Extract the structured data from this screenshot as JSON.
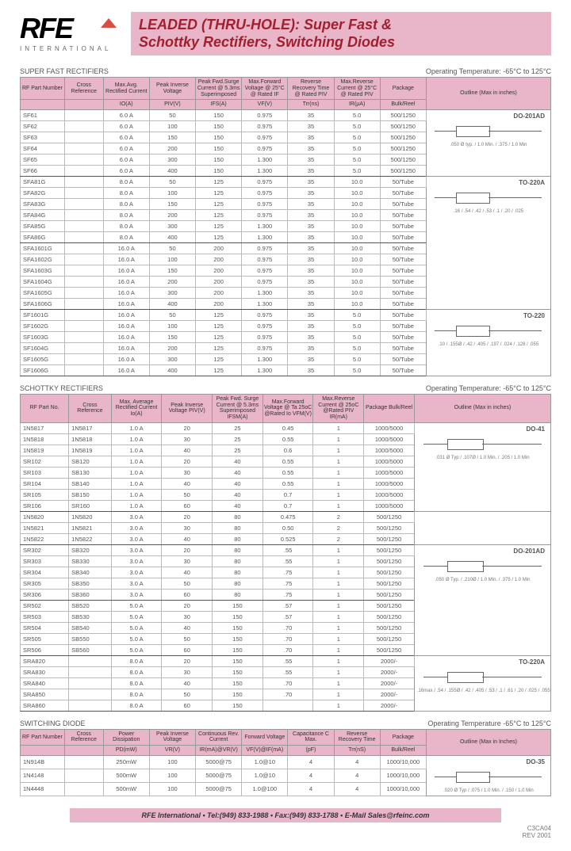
{
  "header": {
    "logo_text": "RFE",
    "logo_sub": "INTERNATIONAL",
    "title_line1": "LEADED (THRU-HOLE): Super Fast &",
    "title_line2": "Schottky Rectifiers, Switching Diodes"
  },
  "sections": {
    "sf": {
      "title": "SUPER FAST RECTIFIERS",
      "temp": "Operating Temperature: -65°C to 125°C",
      "headers": [
        "RF Part Number",
        "Cross Reference",
        "Max.Avg. Rectified Current",
        "Peak Inverse Voltage",
        "Peak Fwd.Surge Current @ 5.3ms Superimposed",
        "Max.Forward Voltage @ 25°C @ Rated IF",
        "Reverse Recovery Time @ Rated PIV",
        "Max.Reverse Current @ 25°C @ Rated PIV",
        "Package",
        "Outline (Max in inches)"
      ],
      "units": [
        "",
        "",
        "IO(A)",
        "PIV(V)",
        "IFS(A)",
        "VF(V)",
        "Trr(ns)",
        "IR(μA)",
        "Bulk/Reel",
        ""
      ],
      "groups": [
        {
          "outline": "DO-201AD",
          "dims": ".050 Ø typ. / 1.0 Min. / .375 / 1.0 Min",
          "rows": [
            [
              "SF61",
              "",
              "6.0 A",
              "50",
              "150",
              "0.975",
              "35",
              "5.0",
              "500/1250"
            ],
            [
              "SF62",
              "",
              "6.0 A",
              "100",
              "150",
              "0.975",
              "35",
              "5.0",
              "500/1250"
            ],
            [
              "SF63",
              "",
              "6.0 A",
              "150",
              "150",
              "0.975",
              "35",
              "5.0",
              "500/1250"
            ],
            [
              "SF64",
              "",
              "6.0 A",
              "200",
              "150",
              "0.975",
              "35",
              "5.0",
              "500/1250"
            ],
            [
              "SF65",
              "",
              "6.0 A",
              "300",
              "150",
              "1.300",
              "35",
              "5.0",
              "500/1250"
            ],
            [
              "SF66",
              "",
              "6.0 A",
              "400",
              "150",
              "1.300",
              "35",
              "5.0",
              "500/1250"
            ]
          ]
        },
        {
          "outline": "TO-220A",
          "dims": ".16 / .54 / .42 / .53 / .1 / .20 / .025",
          "rows": [
            [
              "SFA81G",
              "",
              "8.0 A",
              "50",
              "125",
              "0.975",
              "35",
              "10.0",
              "50/Tube"
            ],
            [
              "SFA82G",
              "",
              "8.0 A",
              "100",
              "125",
              "0.975",
              "35",
              "10.0",
              "50/Tube"
            ],
            [
              "SFA83G",
              "",
              "8.0 A",
              "150",
              "125",
              "0.975",
              "35",
              "10.0",
              "50/Tube"
            ],
            [
              "SFA84G",
              "",
              "8.0 A",
              "200",
              "125",
              "0.975",
              "35",
              "10.0",
              "50/Tube"
            ],
            [
              "SFA85G",
              "",
              "8.0 A",
              "300",
              "125",
              "1.300",
              "35",
              "10.0",
              "50/Tube"
            ],
            [
              "SFA86G",
              "",
              "8.0 A",
              "400",
              "125",
              "1.300",
              "35",
              "10.0",
              "50/Tube"
            ]
          ]
        },
        {
          "outline": "",
          "dims": "",
          "rows": [
            [
              "SFA1601G",
              "",
              "16.0 A",
              "50",
              "200",
              "0.975",
              "35",
              "10.0",
              "50/Tube"
            ],
            [
              "SFA1602G",
              "",
              "16.0 A",
              "100",
              "200",
              "0.975",
              "35",
              "10.0",
              "50/Tube"
            ],
            [
              "SFA1603G",
              "",
              "16.0 A",
              "150",
              "200",
              "0.975",
              "35",
              "10.0",
              "50/Tube"
            ],
            [
              "SFA1604G",
              "",
              "16.0 A",
              "200",
              "200",
              "0.975",
              "35",
              "10.0",
              "50/Tube"
            ],
            [
              "SFA1605G",
              "",
              "16.0 A",
              "300",
              "200",
              "1.300",
              "35",
              "10.0",
              "50/Tube"
            ],
            [
              "SFA1606G",
              "",
              "16.0 A",
              "400",
              "200",
              "1.300",
              "35",
              "10.0",
              "50/Tube"
            ]
          ]
        },
        {
          "outline": "TO-220",
          "dims": ".10 / .155Ø / .42 / .405 / .197 / .024 / .128 / .055",
          "rows": [
            [
              "SF1601G",
              "",
              "16.0 A",
              "50",
              "125",
              "0.975",
              "35",
              "5.0",
              "50/Tube"
            ],
            [
              "SF1602G",
              "",
              "16.0 A",
              "100",
              "125",
              "0.975",
              "35",
              "5.0",
              "50/Tube"
            ],
            [
              "SF1603G",
              "",
              "16.0 A",
              "150",
              "125",
              "0.975",
              "35",
              "5.0",
              "50/Tube"
            ],
            [
              "SF1604G",
              "",
              "16.0 A",
              "200",
              "125",
              "0.975",
              "35",
              "5.0",
              "50/Tube"
            ],
            [
              "SF1605G",
              "",
              "16.0 A",
              "300",
              "125",
              "1.300",
              "35",
              "5.0",
              "50/Tube"
            ],
            [
              "SF1606G",
              "",
              "16.0 A",
              "400",
              "125",
              "1.300",
              "35",
              "5.0",
              "50/Tube"
            ]
          ]
        }
      ]
    },
    "sch": {
      "title": "SCHOTTKY RECTIFIERS",
      "temp": "Operating Temperature: -65°C to 125°C",
      "headers": [
        "RF Part No.",
        "Cross Reference",
        "Max. Average Rectified Current Io(A)",
        "Peak Inverse Voltage PIV(V)",
        "Peak Fwd. Surge Current @ 5.3ms Superimposed IFSM(A)",
        "Max.Forward Voltage @ Ta 25oC @Rated Io VFM(V)",
        "Max.Reverse Current @ 25oC @Rated PIV IR(mA)",
        "Package Bulk/Reel",
        "Outline (Max in inches)"
      ],
      "groups": [
        {
          "outline": "DO-41",
          "dims": ".031 Ø Typ / .107Ø / 1.0 Min. / .205 / 1.0 Min",
          "rows": [
            [
              "1N5817",
              "1N5817",
              "1.0 A",
              "20",
              "25",
              "0.45",
              "1",
              "1000/5000"
            ],
            [
              "1N5818",
              "1N5818",
              "1.0 A",
              "30",
              "25",
              "0.55",
              "1",
              "1000/5000"
            ],
            [
              "1N5819",
              "1N5819",
              "1.0 A",
              "40",
              "25",
              "0.6",
              "1",
              "1000/5000"
            ],
            [
              "SR102",
              "SB120",
              "1.0 A",
              "20",
              "40",
              "0.55",
              "1",
              "1000/5000"
            ],
            [
              "SR103",
              "SB130",
              "1.0 A",
              "30",
              "40",
              "0.55",
              "1",
              "1000/5000"
            ],
            [
              "SR104",
              "SB140",
              "1.0 A",
              "40",
              "40",
              "0.55",
              "1",
              "1000/5000"
            ],
            [
              "SR105",
              "SB150",
              "1.0 A",
              "50",
              "40",
              "0.7",
              "1",
              "1000/5000"
            ],
            [
              "SR106",
              "SR160",
              "1.0 A",
              "60",
              "40",
              "0.7",
              "1",
              "1000/5000"
            ]
          ]
        },
        {
          "outline": "",
          "dims": "",
          "rows": [
            [
              "1N5820",
              "1N5820",
              "3.0 A",
              "20",
              "80",
              "0.475",
              "2",
              "500/1250"
            ],
            [
              "1N5821",
              "1N5821",
              "3.0 A",
              "30",
              "80",
              "0.50",
              "2",
              "500/1250"
            ],
            [
              "1N5822",
              "1N5822",
              "3.0 A",
              "40",
              "80",
              "0.525",
              "2",
              "500/1250"
            ]
          ]
        },
        {
          "outline": "DO-201AD",
          "dims": ".050 Ø Typ. / .210Ø / 1.0 Min. / .375 / 1.0 Min",
          "rows": [
            [
              "SR302",
              "SB320",
              "3.0 A",
              "20",
              "80",
              ".55",
              "1",
              "500/1250"
            ],
            [
              "SR303",
              "SB330",
              "3.0 A",
              "30",
              "80",
              ".55",
              "1",
              "500/1250"
            ],
            [
              "SR304",
              "SB340",
              "3.0 A",
              "40",
              "80",
              ".75",
              "1",
              "500/1250"
            ],
            [
              "SR305",
              "SB350",
              "3.0 A",
              "50",
              "80",
              ".75",
              "1",
              "500/1250"
            ],
            [
              "SR306",
              "SB360",
              "3.0 A",
              "60",
              "80",
              ".75",
              "1",
              "500/1250"
            ]
          ]
        },
        {
          "outline": "",
          "dims": "",
          "rows": [
            [
              "SR502",
              "SB520",
              "5.0 A",
              "20",
              "150",
              ".57",
              "1",
              "500/1250"
            ],
            [
              "SR503",
              "SB530",
              "5.0 A",
              "30",
              "150",
              ".57",
              "1",
              "500/1250"
            ],
            [
              "SR504",
              "SB540",
              "5.0 A",
              "40",
              "150",
              ".70",
              "1",
              "500/1250"
            ],
            [
              "SR505",
              "SB550",
              "5.0 A",
              "50",
              "150",
              ".70",
              "1",
              "500/1250"
            ],
            [
              "SR506",
              "SB560",
              "5.0 A",
              "60",
              "150",
              ".70",
              "1",
              "500/1250"
            ]
          ]
        },
        {
          "outline": "TO-220A",
          "dims": ".16max / .54 / .155Ø / .42 / .405 / .53 / .1 / .61 / .20 / .025 / .055",
          "rows": [
            [
              "SRA820",
              "",
              "8.0 A",
              "20",
              "150",
              ".55",
              "1",
              "2000/-"
            ],
            [
              "SRA830",
              "",
              "8.0 A",
              "30",
              "150",
              ".55",
              "1",
              "2000/-"
            ],
            [
              "SRA840",
              "",
              "8.0 A",
              "40",
              "150",
              ".70",
              "1",
              "2000/-"
            ],
            [
              "SRA850",
              "",
              "8.0 A",
              "50",
              "150",
              ".70",
              "1",
              "2000/-"
            ],
            [
              "SRA860",
              "",
              "8.0 A",
              "60",
              "150",
              "",
              "1",
              "2000/-"
            ]
          ]
        }
      ]
    },
    "sw": {
      "title": "SWITCHING DIODE",
      "temp": "Operating Temperature -65°C to 125°C",
      "headers": [
        "RF Part Number",
        "Cross Reference",
        "Power Dissipation",
        "Peak Inverse Voltage",
        "Continuous Rev. Current",
        "Forward Voltage",
        "Capacitance C Max.",
        "Reverse Recovery Time",
        "Package",
        "Outline (Max in Inches)"
      ],
      "units": [
        "",
        "",
        "PD(mW)",
        "VR(V)",
        "IR(mA)@VR(V)",
        "VF(V)@IF(mA)",
        "(pF)",
        "Trr(nS)",
        "Bulk/Reel",
        ""
      ],
      "rows": [
        [
          "1N914B",
          "",
          "250mW",
          "100",
          "5000@75",
          "1.0@10",
          "4",
          "4",
          "1000/10,000"
        ],
        [
          "1N4148",
          "",
          "500mW",
          "100",
          "5000@75",
          "1.0@10",
          "4",
          "4",
          "1000/10,000"
        ],
        [
          "1N4448",
          "",
          "500mW",
          "100",
          "5000@75",
          "1.0@100",
          "4",
          "4",
          "1000/10,000"
        ]
      ],
      "outline": "DO-35",
      "dims": ".020 Ø Typ / .075 / 1.0 Min. / .150 / 1.0 Min"
    }
  },
  "footer": {
    "text": "RFE International • Tel:(949) 833-1988 • Fax:(949) 833-1788 • E-Mail Sales@rfeinc.com",
    "rev1": "C3CA04",
    "rev2": "REV 2001"
  }
}
